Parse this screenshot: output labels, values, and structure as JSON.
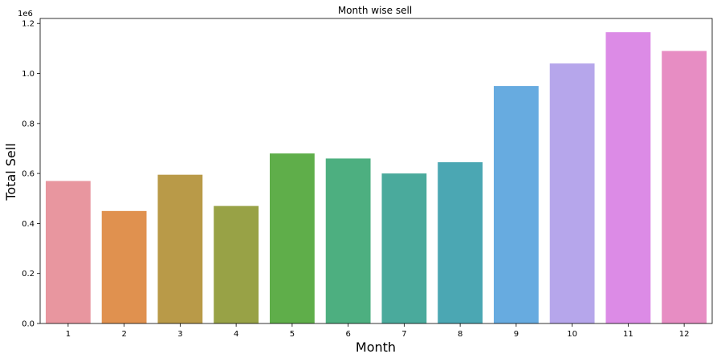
{
  "chart_data": {
    "type": "bar",
    "title": "Month wise sell",
    "xlabel": "Month",
    "ylabel": "Total Sell",
    "y_offset_label": "1e6",
    "categories": [
      "1",
      "2",
      "3",
      "4",
      "5",
      "6",
      "7",
      "8",
      "9",
      "10",
      "11",
      "12"
    ],
    "values": [
      570000,
      450000,
      595000,
      470000,
      680000,
      660000,
      600000,
      645000,
      950000,
      1040000,
      1165000,
      1090000
    ],
    "ylim": [
      0,
      1220000
    ],
    "yticks": [
      0,
      200000,
      400000,
      600000,
      800000,
      1000000,
      1200000
    ],
    "ytick_labels": [
      "0.0",
      "0.2",
      "0.4",
      "0.6",
      "0.8",
      "1.0",
      "1.2"
    ],
    "grid": false,
    "colors": [
      "#e8969f",
      "#e0914f",
      "#b99a48",
      "#98a246",
      "#5fae4a",
      "#4daf80",
      "#4aaa9c",
      "#4ba7b3",
      "#67abe0",
      "#b6a6eb",
      "#dc8be6",
      "#e78dc3"
    ]
  }
}
